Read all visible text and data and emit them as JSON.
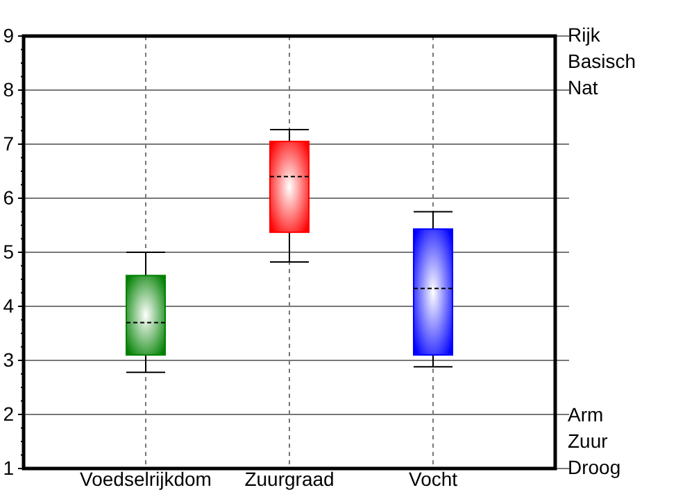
{
  "chart_data": {
    "type": "box",
    "categories": [
      "Voedselrijkdom",
      "Zuurgraad",
      "Vocht"
    ],
    "boxes": [
      {
        "low": 2.78,
        "q1": 3.1,
        "median": 3.7,
        "q3": 4.57,
        "high": 5.0
      },
      {
        "low": 4.82,
        "q1": 5.37,
        "median": 6.4,
        "q3": 7.05,
        "high": 7.27
      },
      {
        "low": 2.88,
        "q1": 3.1,
        "median": 4.33,
        "q3": 5.43,
        "high": 5.75
      }
    ],
    "colors": [
      "#008000",
      "#ff0000",
      "#0000ff"
    ],
    "ylim": [
      1,
      9
    ],
    "yticks": [
      1,
      2,
      3,
      4,
      5,
      6,
      7,
      8,
      9
    ],
    "grid": true,
    "annotations": [
      "Rijk\nBasisch\nNat",
      "Arm\nZuur\nDroog"
    ]
  }
}
